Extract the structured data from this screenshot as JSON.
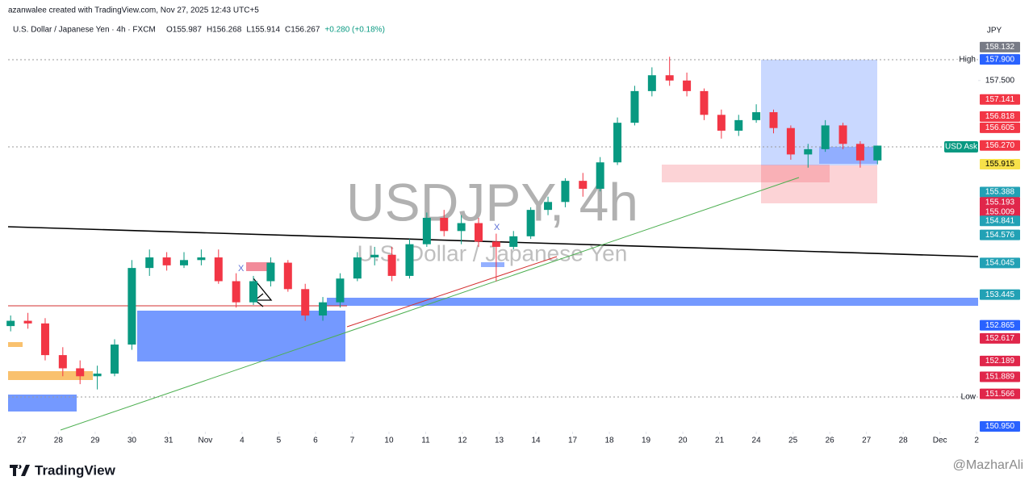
{
  "header": {
    "credit": "azanwalee created with TradingView.com, Nov 27, 2025 12:43 UTC+5",
    "symbol": "U.S. Dollar / Japanese Yen · 4h · FXCM",
    "ohlc": [
      "O155.987",
      "H156.268",
      "L155.914",
      "C156.267",
      "+0.280 (+0.18%)"
    ]
  },
  "chart_data": {
    "type": "candlestick",
    "watermark": "USDJPY, 4h",
    "watermark_sub": "U.S. Dollar / Japanese Yen",
    "currency": "JPY",
    "high_label": "High",
    "low_label": "Low",
    "ask_label": "USD Ask",
    "zone_marks": [
      "X",
      "X"
    ],
    "up_color": "#089981",
    "down_color": "#f23645",
    "xlim": [
      -0.37,
      26.04
    ],
    "xticks": [
      {
        "value": 0,
        "label": "27"
      },
      {
        "value": 1,
        "label": "28"
      },
      {
        "value": 2,
        "label": "29"
      },
      {
        "value": 3,
        "label": "30"
      },
      {
        "value": 4,
        "label": "31"
      },
      {
        "value": 5,
        "label": "Nov"
      },
      {
        "value": 6,
        "label": "4"
      },
      {
        "value": 7,
        "label": "5"
      },
      {
        "value": 8,
        "label": "6"
      },
      {
        "value": 9,
        "label": "7"
      },
      {
        "value": 10,
        "label": "10"
      },
      {
        "value": 11,
        "label": "11"
      },
      {
        "value": 12,
        "label": "12"
      },
      {
        "value": 13,
        "label": "13"
      },
      {
        "value": 14,
        "label": "14"
      },
      {
        "value": 15,
        "label": "17"
      },
      {
        "value": 16,
        "label": "18"
      },
      {
        "value": 17,
        "label": "19"
      },
      {
        "value": 18,
        "label": "20"
      },
      {
        "value": 19,
        "label": "21"
      },
      {
        "value": 20,
        "label": "24"
      },
      {
        "value": 21,
        "label": "25"
      },
      {
        "value": 22,
        "label": "26"
      },
      {
        "value": 23,
        "label": "27"
      },
      {
        "value": 24,
        "label": "28"
      },
      {
        "value": 25,
        "label": "Dec"
      },
      {
        "value": 26,
        "label": "2"
      }
    ],
    "ylim": [
      150.85,
      158.49
    ],
    "yticks": [
      {
        "value": 157.5,
        "label": "157.500"
      }
    ],
    "markers": [
      {
        "value": 158.132,
        "label": "158.132",
        "color": "#787b86",
        "text_color": "#ffffff"
      },
      {
        "value": 157.9,
        "label": "157.900",
        "color": "#2962ff",
        "text_color": "#ffffff"
      },
      {
        "value": 157.141,
        "label": "157.141",
        "color": "#f23645",
        "text_color": "#ffffff"
      },
      {
        "value": 156.818,
        "label": "156.818",
        "color": "#f23645",
        "text_color": "#ffffff"
      },
      {
        "value": 156.605,
        "label": "156.605",
        "color": "#f23645",
        "text_color": "#ffffff"
      },
      {
        "value": 156.27,
        "label": "156.270",
        "color": "#f23645",
        "text_color": "#ffffff"
      },
      {
        "value": 155.915,
        "label": "155.915",
        "color": "#f7e14a",
        "text_color": "#000000"
      },
      {
        "value": 155.388,
        "label": "155.388",
        "color": "#22a1b5",
        "text_color": "#ffffff"
      },
      {
        "value": 155.193,
        "label": "155.193",
        "color": "#e0264a",
        "text_color": "#ffffff"
      },
      {
        "value": 155.009,
        "label": "155.009",
        "color": "#e0264a",
        "text_color": "#ffffff"
      },
      {
        "value": 154.841,
        "label": "154.841",
        "color": "#22a1b5",
        "text_color": "#ffffff"
      },
      {
        "value": 154.576,
        "label": "154.576",
        "color": "#22a1b5",
        "text_color": "#ffffff"
      },
      {
        "value": 154.045,
        "label": "154.045",
        "color": "#22a1b5",
        "text_color": "#ffffff"
      },
      {
        "value": 153.445,
        "label": "153.445",
        "color": "#22a1b5",
        "text_color": "#ffffff"
      },
      {
        "value": 152.865,
        "label": "152.865",
        "color": "#2962ff",
        "text_color": "#ffffff"
      },
      {
        "value": 152.617,
        "label": "152.617",
        "color": "#e0264a",
        "text_color": "#ffffff"
      },
      {
        "value": 152.189,
        "label": "152.189",
        "color": "#e0264a",
        "text_color": "#ffffff"
      },
      {
        "value": 151.889,
        "label": "151.889",
        "color": "#e0264a",
        "text_color": "#ffffff"
      },
      {
        "value": 151.566,
        "label": "151.566",
        "color": "#e0264a",
        "text_color": "#ffffff"
      },
      {
        "value": 150.95,
        "label": "150.950",
        "color": "#2962ff",
        "text_color": "#ffffff"
      }
    ],
    "candles": [
      {
        "x": -0.3,
        "open": 152.85,
        "high": 153.05,
        "low": 152.75,
        "close": 152.95
      },
      {
        "x": 0.17,
        "open": 152.95,
        "high": 153.1,
        "low": 152.8,
        "close": 152.9
      },
      {
        "x": 0.64,
        "open": 152.9,
        "high": 153.0,
        "low": 152.2,
        "close": 152.3
      },
      {
        "x": 1.12,
        "open": 152.3,
        "high": 152.45,
        "low": 151.9,
        "close": 152.05
      },
      {
        "x": 1.59,
        "open": 152.05,
        "high": 152.2,
        "low": 151.75,
        "close": 151.9
      },
      {
        "x": 2.06,
        "open": 151.9,
        "high": 152.1,
        "low": 151.65,
        "close": 151.95
      },
      {
        "x": 2.53,
        "open": 151.95,
        "high": 152.6,
        "low": 151.9,
        "close": 152.5
      },
      {
        "x": 3.0,
        "open": 152.5,
        "high": 154.1,
        "low": 152.4,
        "close": 153.95
      },
      {
        "x": 3.48,
        "open": 153.95,
        "high": 154.3,
        "low": 153.8,
        "close": 154.15
      },
      {
        "x": 3.95,
        "open": 154.15,
        "high": 154.25,
        "low": 153.9,
        "close": 154.0
      },
      {
        "x": 4.42,
        "open": 154.0,
        "high": 154.25,
        "low": 153.95,
        "close": 154.1
      },
      {
        "x": 4.89,
        "open": 154.1,
        "high": 154.3,
        "low": 154.0,
        "close": 154.15
      },
      {
        "x": 5.36,
        "open": 154.15,
        "high": 154.3,
        "low": 153.65,
        "close": 153.7
      },
      {
        "x": 5.84,
        "open": 153.7,
        "high": 153.85,
        "low": 153.2,
        "close": 153.3
      },
      {
        "x": 6.31,
        "open": 153.3,
        "high": 153.8,
        "low": 153.25,
        "close": 153.7
      },
      {
        "x": 6.78,
        "open": 153.7,
        "high": 154.15,
        "low": 153.6,
        "close": 154.05
      },
      {
        "x": 7.25,
        "open": 154.05,
        "high": 154.1,
        "low": 153.5,
        "close": 153.55
      },
      {
        "x": 7.72,
        "open": 153.55,
        "high": 153.65,
        "low": 152.95,
        "close": 153.05
      },
      {
        "x": 8.2,
        "open": 153.05,
        "high": 153.4,
        "low": 152.95,
        "close": 153.3
      },
      {
        "x": 8.67,
        "open": 153.3,
        "high": 153.85,
        "low": 153.2,
        "close": 153.75
      },
      {
        "x": 9.14,
        "open": 153.75,
        "high": 154.25,
        "low": 153.7,
        "close": 154.15
      },
      {
        "x": 9.61,
        "open": 154.15,
        "high": 154.35,
        "low": 154.0,
        "close": 154.2
      },
      {
        "x": 10.08,
        "open": 154.2,
        "high": 154.35,
        "low": 153.7,
        "close": 153.8
      },
      {
        "x": 10.56,
        "open": 153.8,
        "high": 154.5,
        "low": 153.75,
        "close": 154.4
      },
      {
        "x": 11.03,
        "open": 154.4,
        "high": 155.0,
        "low": 154.35,
        "close": 154.9
      },
      {
        "x": 11.5,
        "open": 154.9,
        "high": 155.05,
        "low": 154.55,
        "close": 154.65
      },
      {
        "x": 11.97,
        "open": 154.65,
        "high": 154.95,
        "low": 154.4,
        "close": 154.8
      },
      {
        "x": 12.44,
        "open": 154.8,
        "high": 154.9,
        "low": 154.35,
        "close": 154.45
      },
      {
        "x": 12.92,
        "open": 154.45,
        "high": 154.6,
        "low": 153.7,
        "close": 154.35
      },
      {
        "x": 13.39,
        "open": 154.35,
        "high": 154.65,
        "low": 154.3,
        "close": 154.55
      },
      {
        "x": 13.86,
        "open": 154.55,
        "high": 155.1,
        "low": 154.5,
        "close": 155.05
      },
      {
        "x": 14.33,
        "open": 155.05,
        "high": 155.3,
        "low": 154.95,
        "close": 155.2
      },
      {
        "x": 14.8,
        "open": 155.2,
        "high": 155.65,
        "low": 155.1,
        "close": 155.6
      },
      {
        "x": 15.28,
        "open": 155.6,
        "high": 155.75,
        "low": 155.3,
        "close": 155.45
      },
      {
        "x": 15.75,
        "open": 155.45,
        "high": 156.05,
        "low": 155.4,
        "close": 155.95
      },
      {
        "x": 16.22,
        "open": 155.95,
        "high": 156.8,
        "low": 155.9,
        "close": 156.7
      },
      {
        "x": 16.69,
        "open": 156.7,
        "high": 157.4,
        "low": 156.65,
        "close": 157.3
      },
      {
        "x": 17.16,
        "open": 157.3,
        "high": 157.75,
        "low": 157.2,
        "close": 157.6
      },
      {
        "x": 17.64,
        "open": 157.6,
        "high": 157.95,
        "low": 157.4,
        "close": 157.5
      },
      {
        "x": 18.11,
        "open": 157.5,
        "high": 157.65,
        "low": 157.2,
        "close": 157.3
      },
      {
        "x": 18.58,
        "open": 157.3,
        "high": 157.35,
        "low": 156.75,
        "close": 156.85
      },
      {
        "x": 19.05,
        "open": 156.85,
        "high": 156.95,
        "low": 156.4,
        "close": 156.55
      },
      {
        "x": 19.52,
        "open": 156.55,
        "high": 156.85,
        "low": 156.45,
        "close": 156.75
      },
      {
        "x": 20.0,
        "open": 156.75,
        "high": 157.05,
        "low": 156.7,
        "close": 156.9
      },
      {
        "x": 20.47,
        "open": 156.9,
        "high": 156.95,
        "low": 156.5,
        "close": 156.6
      },
      {
        "x": 20.94,
        "open": 156.6,
        "high": 156.65,
        "low": 156.0,
        "close": 156.1
      },
      {
        "x": 21.41,
        "open": 156.1,
        "high": 156.3,
        "low": 155.85,
        "close": 156.2
      },
      {
        "x": 21.88,
        "open": 156.2,
        "high": 156.75,
        "low": 156.15,
        "close": 156.65
      },
      {
        "x": 22.36,
        "open": 156.65,
        "high": 156.7,
        "low": 156.2,
        "close": 156.3
      },
      {
        "x": 22.83,
        "open": 156.3,
        "high": 156.35,
        "low": 155.85,
        "close": 155.987
      },
      {
        "x": 23.3,
        "open": 155.987,
        "high": 156.268,
        "low": 155.914,
        "close": 156.267
      }
    ]
  },
  "footer": {
    "logo": "TradingView",
    "watermark": "@MazharAli"
  }
}
